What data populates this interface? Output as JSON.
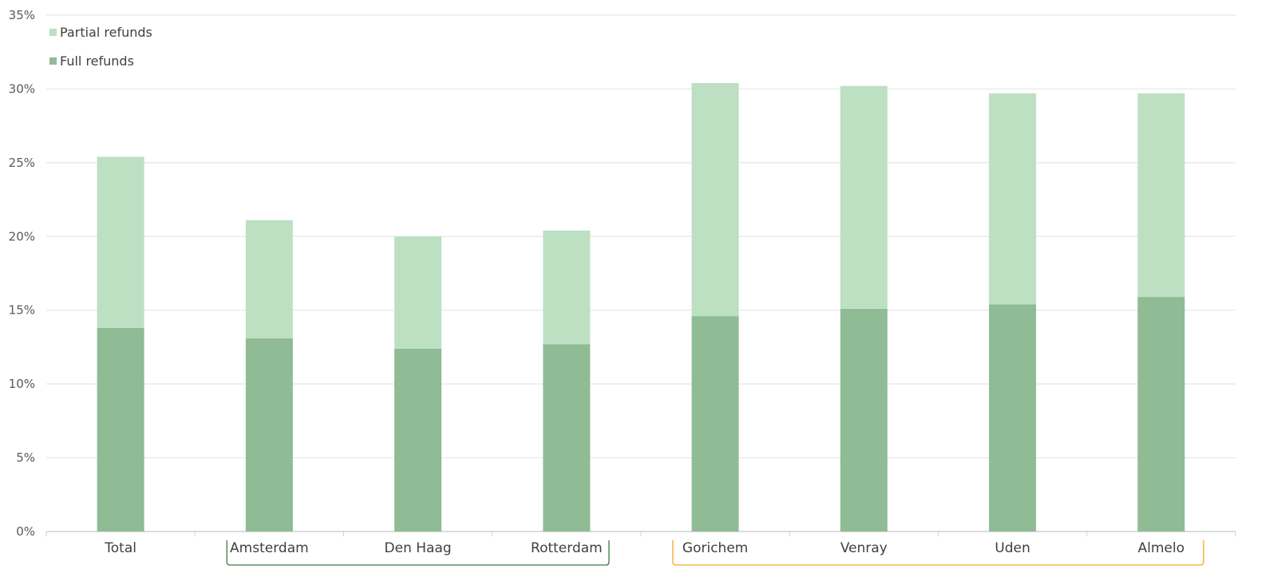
{
  "chart_data": {
    "type": "bar",
    "stacked": true,
    "categories": [
      "Total",
      "Amsterdam",
      "Den Haag",
      "Rotterdam",
      "Gorichem",
      "Venray",
      "Uden",
      "Almelo"
    ],
    "series": [
      {
        "name": "Full refunds",
        "color": "#8fbb95",
        "values": [
          13.8,
          13.1,
          12.4,
          12.7,
          14.6,
          15.1,
          15.4,
          15.9
        ]
      },
      {
        "name": "Partial refunds",
        "color": "#bde0c3",
        "values": [
          11.6,
          8.0,
          7.6,
          7.7,
          15.8,
          15.1,
          14.3,
          13.8
        ]
      }
    ],
    "ylim": [
      0,
      35
    ],
    "yticks": [
      0,
      5,
      10,
      15,
      20,
      25,
      30,
      35
    ],
    "ytick_labels": [
      "0%",
      "5%",
      "10%",
      "15%",
      "20%",
      "25%",
      "30%",
      "35%"
    ],
    "grid": true,
    "legend": {
      "placement": "top-left",
      "order": [
        "Partial refunds",
        "Full refunds"
      ]
    },
    "group_brackets": [
      {
        "from": "Amsterdam",
        "to": "Rotterdam",
        "color": "#3b7a4a"
      },
      {
        "from": "Gorichem",
        "to": "Almelo",
        "color": "#f5a623"
      }
    ]
  }
}
